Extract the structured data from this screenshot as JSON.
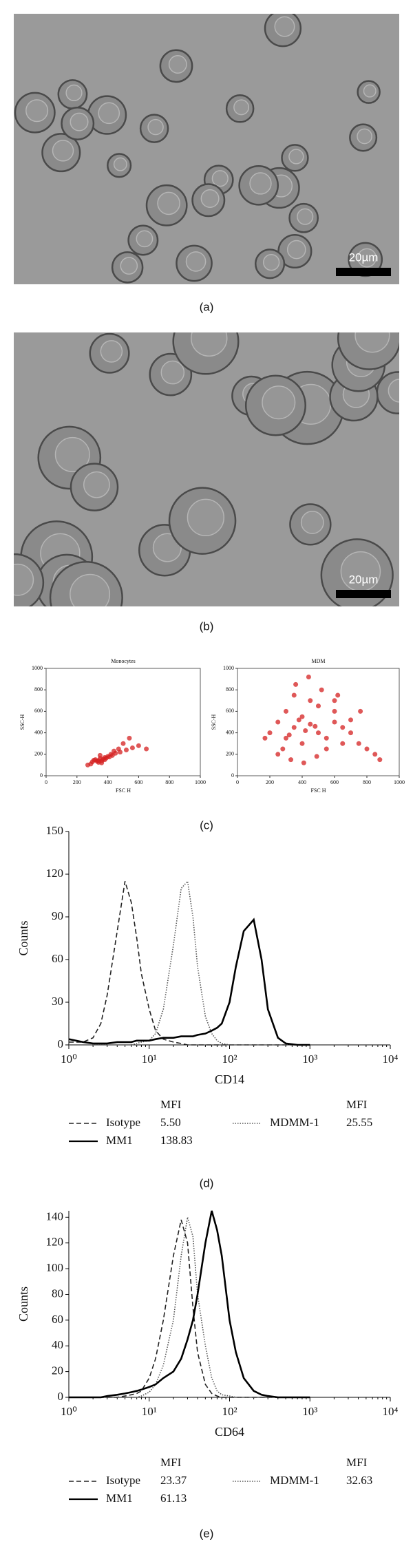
{
  "panels": [
    {
      "label": "(a)",
      "scale_bar": "20µm"
    },
    {
      "label": "(b)",
      "scale_bar": "20µm"
    },
    {
      "label": "(c)"
    },
    {
      "label": "(d)"
    },
    {
      "label": "(e)"
    }
  ],
  "chart_data": [
    {
      "type": "scatter",
      "title": "Monocytes",
      "x_label": "FSC H",
      "y_label": "SSC-H",
      "color": "#d42020",
      "xlim": [
        0,
        1000
      ],
      "ylim": [
        0,
        1000
      ],
      "xticks": [
        0,
        200,
        400,
        600,
        800,
        1000
      ],
      "yticks": [
        0,
        200,
        400,
        600,
        800,
        1000
      ],
      "x": [
        300,
        320,
        340,
        350,
        360,
        380,
        400,
        330,
        310,
        290,
        370,
        420,
        450,
        480,
        520,
        560,
        600,
        650,
        270,
        350,
        390,
        410,
        440,
        360,
        340,
        380,
        500,
        540,
        470,
        430
      ],
      "values": [
        130,
        150,
        140,
        160,
        120,
        170,
        180,
        135,
        145,
        110,
        155,
        200,
        210,
        220,
        240,
        260,
        280,
        250,
        100,
        190,
        165,
        175,
        230,
        140,
        125,
        150,
        300,
        350,
        250,
        190
      ]
    },
    {
      "type": "scatter",
      "title": "MDM",
      "x_label": "FSC H",
      "y_label": "SSC-H",
      "color": "#d42020",
      "xlim": [
        0,
        1000
      ],
      "ylim": [
        0,
        1000
      ],
      "xticks": [
        0,
        200,
        400,
        600,
        800,
        1000
      ],
      "yticks": [
        0,
        200,
        400,
        600,
        800,
        1000
      ],
      "x": [
        250,
        300,
        350,
        400,
        450,
        500,
        550,
        600,
        650,
        700,
        750,
        800,
        850,
        200,
        300,
        400,
        500,
        600,
        350,
        450,
        380,
        420,
        320,
        480,
        550,
        650,
        700,
        280,
        360,
        440,
        520,
        600,
        250,
        330,
        410,
        490,
        170,
        620,
        760,
        880
      ],
      "values": [
        500,
        600,
        450,
        550,
        480,
        400,
        350,
        500,
        450,
        400,
        300,
        250,
        200,
        400,
        350,
        300,
        650,
        600,
        750,
        700,
        520,
        420,
        380,
        460,
        250,
        300,
        520,
        250,
        850,
        920,
        800,
        700,
        200,
        150,
        120,
        180,
        350,
        750,
        600,
        150
      ]
    },
    {
      "type": "line",
      "x_label": "CD14",
      "y_label": "Counts",
      "xscale": "log",
      "legend_header": "MFI",
      "xlim": [
        1,
        10000
      ],
      "ylim": [
        0,
        150
      ],
      "xticks": [
        {
          "value": 1,
          "label": "10⁰"
        },
        {
          "value": 10,
          "label": "10¹"
        },
        {
          "value": 100,
          "label": "10²"
        },
        {
          "value": 1000,
          "label": "10³"
        },
        {
          "value": 10000,
          "label": "10⁴"
        }
      ],
      "yticks": [
        0,
        30,
        60,
        90,
        120,
        150
      ],
      "x": [
        1,
        1.5,
        2,
        2.5,
        3,
        4,
        5,
        6,
        7,
        8,
        10,
        12,
        15,
        20,
        25,
        30,
        35,
        40,
        50,
        60,
        70,
        80,
        100,
        120,
        150,
        200,
        250,
        300,
        400,
        500,
        700,
        1000
      ],
      "series": [
        {
          "name": "Isotype",
          "mfi": "5.50",
          "color": "#222",
          "dash": "dashed",
          "values": [
            2,
            2,
            5,
            15,
            35,
            80,
            115,
            100,
            75,
            50,
            25,
            10,
            4,
            2,
            1,
            0,
            0,
            0,
            0,
            0,
            0,
            0,
            0,
            0,
            0,
            0,
            0,
            0,
            0,
            0,
            0,
            0
          ]
        },
        {
          "name": "MDMM-1",
          "mfi": "25.55",
          "color": "#555",
          "dash": "dotted",
          "values": [
            0,
            0,
            0,
            0,
            0,
            0,
            0,
            0,
            1,
            2,
            3,
            8,
            25,
            70,
            110,
            115,
            90,
            55,
            20,
            8,
            3,
            1,
            0,
            0,
            0,
            0,
            0,
            0,
            0,
            0,
            0,
            0
          ]
        },
        {
          "name": "MM1",
          "mfi": "138.83",
          "color": "#000",
          "dash": "solid",
          "values": [
            4,
            2,
            1,
            1,
            1,
            2,
            2,
            2,
            3,
            3,
            3,
            4,
            5,
            5,
            6,
            6,
            6,
            7,
            8,
            10,
            12,
            15,
            30,
            55,
            80,
            88,
            60,
            25,
            5,
            1,
            0,
            0
          ]
        }
      ]
    },
    {
      "type": "line",
      "x_label": "CD64",
      "y_label": "Counts",
      "xscale": "log",
      "legend_header": "MFI",
      "xlim": [
        1,
        10000
      ],
      "ylim": [
        0,
        145
      ],
      "xticks": [
        {
          "value": 1,
          "label": "10⁰"
        },
        {
          "value": 10,
          "label": "10¹"
        },
        {
          "value": 100,
          "label": "10²"
        },
        {
          "value": 1000,
          "label": "10³"
        },
        {
          "value": 10000,
          "label": "10⁴"
        }
      ],
      "yticks": [
        0,
        20,
        40,
        60,
        80,
        100,
        120,
        140
      ],
      "x": [
        1,
        1.5,
        2,
        2.5,
        3,
        4,
        5,
        6,
        7,
        8,
        10,
        12,
        15,
        20,
        25,
        30,
        35,
        40,
        50,
        60,
        70,
        80,
        100,
        120,
        150,
        200,
        250,
        300,
        400,
        500,
        700,
        1000
      ],
      "series": [
        {
          "name": "Isotype",
          "mfi": "23.37",
          "color": "#222",
          "dash": "dashed",
          "values": [
            0,
            0,
            0,
            0,
            0,
            0,
            1,
            2,
            3,
            5,
            15,
            30,
            60,
            110,
            138,
            120,
            70,
            35,
            10,
            3,
            1,
            0,
            0,
            0,
            0,
            0,
            0,
            0,
            0,
            0,
            0,
            0
          ]
        },
        {
          "name": "MDMM-1",
          "mfi": "32.63",
          "color": "#555",
          "dash": "dotted",
          "values": [
            0,
            0,
            0,
            0,
            0,
            0,
            0,
            0,
            0,
            1,
            4,
            10,
            25,
            60,
            110,
            140,
            125,
            80,
            40,
            15,
            5,
            2,
            1,
            0,
            0,
            0,
            0,
            0,
            0,
            0,
            0,
            0
          ]
        },
        {
          "name": "MM1",
          "mfi": "61.13",
          "color": "#000",
          "dash": "solid",
          "values": [
            0,
            0,
            0,
            0,
            1,
            2,
            3,
            4,
            5,
            6,
            8,
            10,
            15,
            20,
            30,
            45,
            60,
            80,
            120,
            145,
            130,
            110,
            60,
            35,
            15,
            5,
            2,
            1,
            0,
            0,
            0,
            0
          ]
        }
      ]
    }
  ]
}
